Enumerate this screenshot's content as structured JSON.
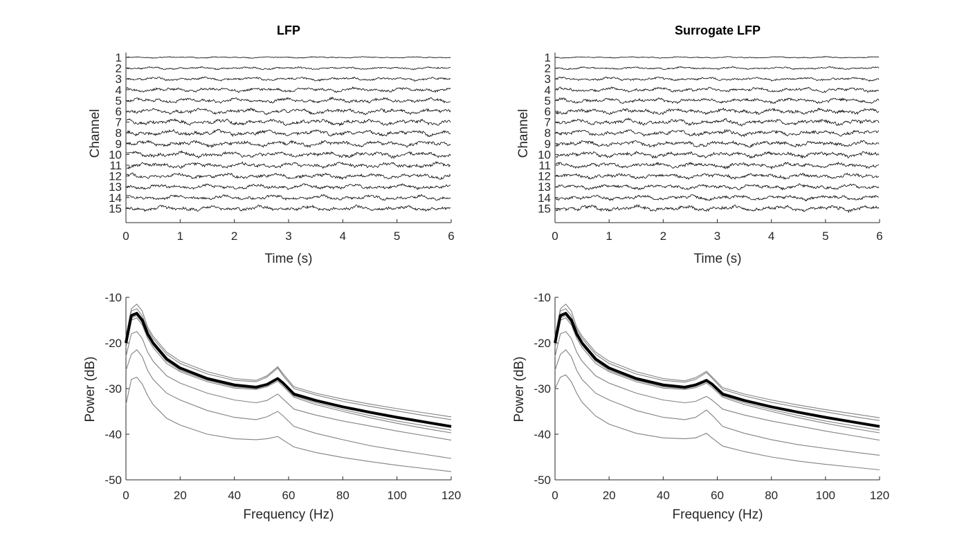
{
  "chart_data": [
    {
      "type": "line",
      "title": "LFP",
      "xlabel": "Time (s)",
      "ylabel": "Channel",
      "xlim": [
        0,
        6
      ],
      "xticks": [
        "0",
        "1",
        "2",
        "3",
        "4",
        "5",
        "6"
      ],
      "channel_labels": [
        "1",
        "2",
        "3",
        "4",
        "5",
        "6",
        "7",
        "8",
        "9",
        "10",
        "11",
        "12",
        "13",
        "14",
        "15"
      ],
      "amplitudes": [
        0.25,
        0.45,
        0.6,
        0.75,
        0.85,
        0.95,
        1.0,
        1.0,
        1.0,
        1.0,
        0.95,
        0.9,
        0.85,
        0.85,
        0.9
      ],
      "colors": {
        "trace": "#000000",
        "axis": "#262626"
      }
    },
    {
      "type": "line",
      "title": "Surrogate LFP",
      "xlabel": "Time (s)",
      "ylabel": "Channel",
      "xlim": [
        0,
        6
      ],
      "xticks": [
        "0",
        "1",
        "2",
        "3",
        "4",
        "5",
        "6"
      ],
      "channel_labels": [
        "1",
        "2",
        "3",
        "4",
        "5",
        "6",
        "7",
        "8",
        "9",
        "10",
        "11",
        "12",
        "13",
        "14",
        "15"
      ],
      "amplitudes": [
        0.25,
        0.45,
        0.6,
        0.75,
        0.85,
        0.95,
        1.0,
        1.0,
        1.0,
        1.0,
        0.95,
        0.9,
        0.85,
        0.85,
        1.0
      ],
      "colors": {
        "trace": "#000000",
        "axis": "#262626"
      }
    },
    {
      "type": "line",
      "title": "",
      "xlabel": "Frequency (Hz)",
      "ylabel": "Power (dB)",
      "xlim": [
        0,
        120
      ],
      "ylim": [
        -50,
        -10
      ],
      "xticks": [
        "0",
        "20",
        "40",
        "60",
        "80",
        "100",
        "120"
      ],
      "yticks": [
        "-10",
        "-20",
        "-30",
        "-40",
        "-50"
      ],
      "x": [
        0,
        2,
        4,
        6,
        8,
        10,
        15,
        20,
        30,
        40,
        48,
        52,
        56,
        58,
        62,
        70,
        80,
        90,
        100,
        110,
        120
      ],
      "mean_series": [
        -20,
        -14,
        -13.5,
        -15,
        -18,
        -20,
        -23.5,
        -25.5,
        -27.8,
        -29.2,
        -29.7,
        -29.1,
        -27.8,
        -28.8,
        -31.2,
        -32.6,
        -34,
        -35.2,
        -36.3,
        -37.3,
        -38.3
      ],
      "series": [
        {
          "values": [
            -20,
            -14,
            -13.5,
            -15,
            -18,
            -20,
            -23.5,
            -25.5,
            -27.8,
            -29.2,
            -29.7,
            -29.1,
            -27.8,
            -28.8,
            -31.2,
            -32.6,
            -34,
            -35.2,
            -36.3,
            -37.3,
            -38.3
          ]
        },
        {
          "values": [
            -19,
            -13,
            -12.5,
            -14,
            -17,
            -19,
            -22.5,
            -24.5,
            -26.8,
            -28.2,
            -28.5,
            -27.5,
            -25.5,
            -27.2,
            -30,
            -31.4,
            -32.8,
            -33.9,
            -34.9,
            -35.9,
            -36.8
          ]
        },
        {
          "values": [
            -18.5,
            -12.5,
            -11.5,
            -13,
            -16.5,
            -18.5,
            -22,
            -24,
            -26.3,
            -27.8,
            -28.2,
            -27.2,
            -25.2,
            -26.8,
            -29.6,
            -31,
            -32.3,
            -33.4,
            -34.4,
            -35.3,
            -36.2
          ]
        },
        {
          "values": [
            -20.5,
            -14.5,
            -14,
            -15.5,
            -18.5,
            -20.5,
            -24,
            -26,
            -28.2,
            -29.6,
            -30,
            -29.3,
            -28,
            -29.1,
            -31.6,
            -33.1,
            -34.6,
            -35.9,
            -37.1,
            -38.1,
            -39.1
          ]
        },
        {
          "values": [
            -21,
            -15,
            -14.5,
            -16,
            -19,
            -21,
            -24.5,
            -26.3,
            -28.5,
            -29.9,
            -30.2,
            -29.6,
            -28.4,
            -29.5,
            -31.9,
            -33.5,
            -35,
            -36.4,
            -37.6,
            -38.7,
            -39.7
          ]
        },
        {
          "values": [
            -23,
            -18,
            -17.5,
            -19,
            -22,
            -24,
            -27.2,
            -28.8,
            -31,
            -32.5,
            -33.1,
            -32.6,
            -31.2,
            -32.3,
            -34.5,
            -35.8,
            -37.1,
            -38.2,
            -39.3,
            -40.3,
            -41.3
          ]
        },
        {
          "values": [
            -26,
            -22.5,
            -21.5,
            -23,
            -26,
            -28,
            -31,
            -32.5,
            -34.8,
            -36.3,
            -36.8,
            -36.2,
            -35,
            -36,
            -38.3,
            -39.8,
            -41.2,
            -42.5,
            -43.5,
            -44.4,
            -45.3
          ]
        },
        {
          "values": [
            -33.5,
            -28,
            -27.5,
            -29,
            -31.5,
            -33.5,
            -36.5,
            -38,
            -40,
            -41,
            -41.2,
            -41,
            -40.5,
            -41.3,
            -42.8,
            -44,
            -45.1,
            -46,
            -46.8,
            -47.5,
            -48.2
          ]
        }
      ],
      "colors": {
        "mean": "#000000",
        "channels": "#808080",
        "axis": "#262626"
      }
    },
    {
      "type": "line",
      "title": "",
      "xlabel": "Frequency (Hz)",
      "ylabel": "Power (dB)",
      "xlim": [
        0,
        120
      ],
      "ylim": [
        -50,
        -10
      ],
      "xticks": [
        "0",
        "20",
        "40",
        "60",
        "80",
        "100",
        "120"
      ],
      "yticks": [
        "-10",
        "-20",
        "-30",
        "-40",
        "-50"
      ],
      "x": [
        0,
        2,
        4,
        6,
        8,
        10,
        15,
        20,
        30,
        40,
        48,
        52,
        56,
        58,
        62,
        70,
        80,
        90,
        100,
        110,
        120
      ],
      "mean_series": [
        -20,
        -14,
        -13.5,
        -15,
        -18,
        -20,
        -23.5,
        -25.5,
        -27.8,
        -29.2,
        -29.7,
        -29.2,
        -28.2,
        -29,
        -31.2,
        -32.6,
        -34,
        -35.2,
        -36.3,
        -37.3,
        -38.3
      ],
      "series": [
        {
          "values": [
            -20,
            -14,
            -13.5,
            -15,
            -18,
            -20,
            -23.5,
            -25.5,
            -27.8,
            -29.2,
            -29.7,
            -29.2,
            -28.2,
            -29,
            -31.2,
            -32.6,
            -34,
            -35.2,
            -36.3,
            -37.3,
            -38.3
          ]
        },
        {
          "values": [
            -19,
            -13,
            -12.5,
            -14,
            -17,
            -19,
            -22.5,
            -24.5,
            -26.8,
            -28.2,
            -28.6,
            -28,
            -26.5,
            -27.7,
            -30.2,
            -31.6,
            -33,
            -34.1,
            -35.1,
            -36.1,
            -37
          ]
        },
        {
          "values": [
            -18.5,
            -12.5,
            -11.5,
            -13,
            -16.5,
            -18.5,
            -22,
            -24,
            -26.3,
            -27.8,
            -28.3,
            -27.6,
            -26.2,
            -27.4,
            -29.8,
            -31.2,
            -32.5,
            -33.6,
            -34.6,
            -35.5,
            -36.4
          ]
        },
        {
          "values": [
            -20.5,
            -14.5,
            -14,
            -15.5,
            -18.5,
            -20.5,
            -24,
            -26,
            -28.2,
            -29.6,
            -30,
            -29.5,
            -28.5,
            -29.3,
            -31.6,
            -33.1,
            -34.6,
            -35.9,
            -37.1,
            -38.1,
            -39.1
          ]
        },
        {
          "values": [
            -21,
            -15,
            -14.5,
            -16,
            -19,
            -21,
            -24.5,
            -26.3,
            -28.5,
            -29.9,
            -30.2,
            -29.8,
            -28.8,
            -29.7,
            -31.9,
            -33.5,
            -35,
            -36.4,
            -37.6,
            -38.7,
            -39.7
          ]
        },
        {
          "values": [
            -23,
            -18,
            -17.5,
            -19,
            -22,
            -24,
            -27.2,
            -28.8,
            -31,
            -32.5,
            -33.1,
            -32.8,
            -31.7,
            -32.5,
            -34.5,
            -35.8,
            -37.1,
            -38.2,
            -39.3,
            -40.3,
            -41.3
          ]
        },
        {
          "values": [
            -26,
            -22.5,
            -21.5,
            -23,
            -26,
            -28,
            -31,
            -32.5,
            -34.8,
            -36.3,
            -36.8,
            -36.3,
            -34.7,
            -35.8,
            -38.3,
            -39.8,
            -41.2,
            -42.3,
            -43.1,
            -43.9,
            -44.6
          ]
        },
        {
          "values": [
            -30,
            -27.5,
            -27,
            -28.5,
            -31,
            -33,
            -36,
            -37.8,
            -39.8,
            -40.8,
            -41,
            -40.8,
            -39.8,
            -40.8,
            -42.6,
            -43.8,
            -45,
            -45.9,
            -46.6,
            -47.2,
            -47.8
          ]
        }
      ],
      "colors": {
        "mean": "#000000",
        "channels": "#808080",
        "axis": "#262626"
      }
    }
  ]
}
